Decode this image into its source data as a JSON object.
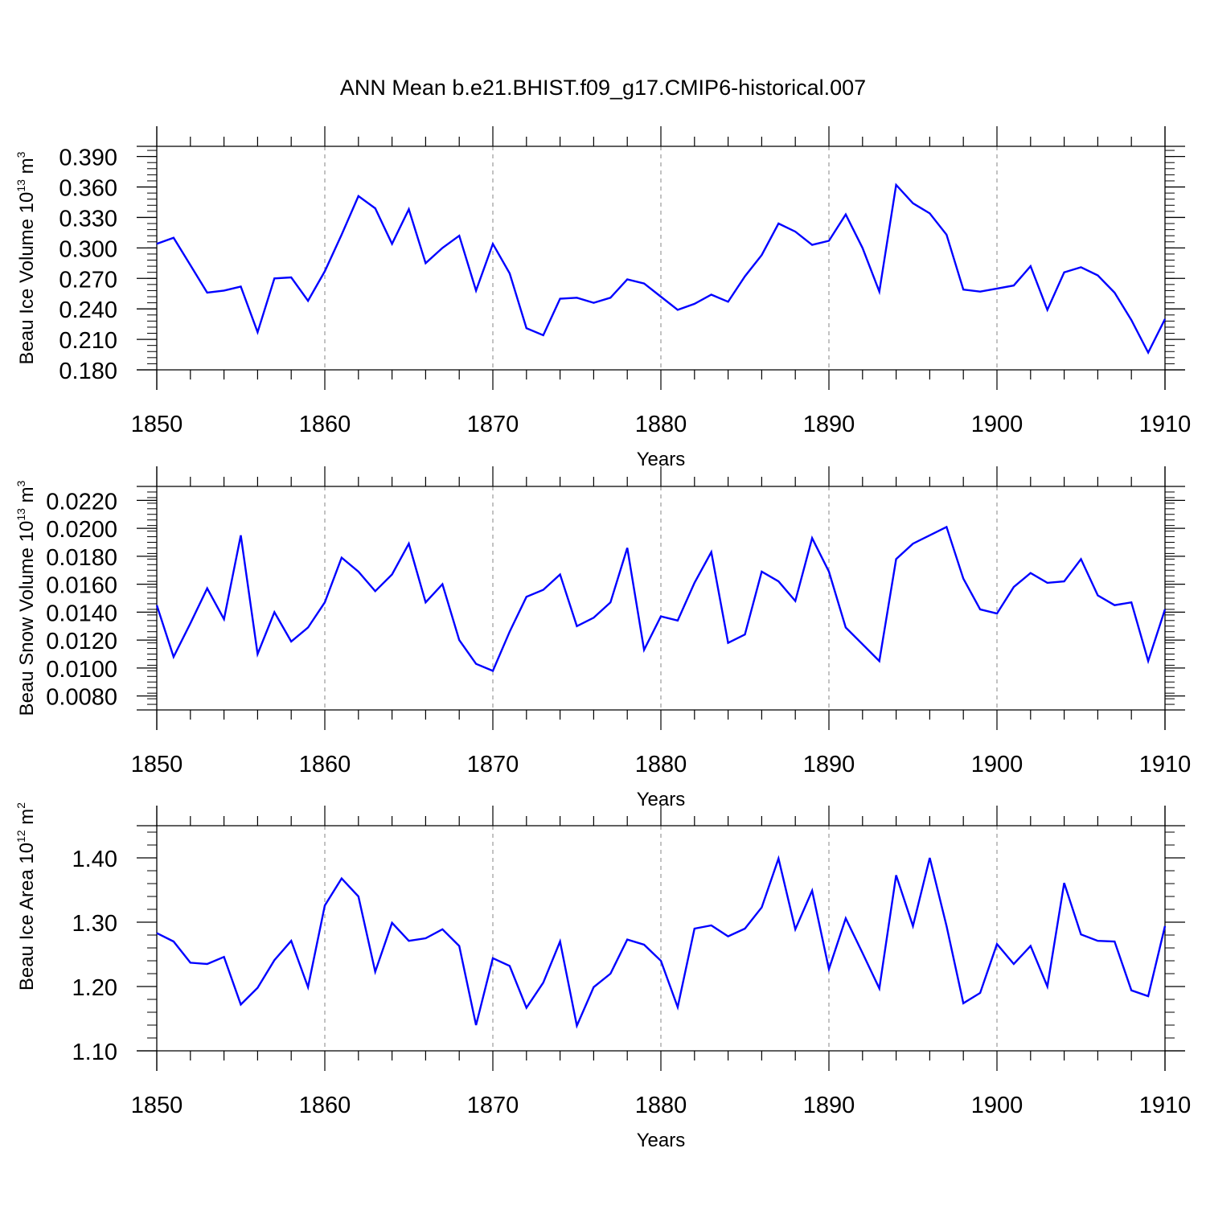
{
  "title": "ANN Mean b.e21.BHIST.f09_g17.CMIP6-historical.007",
  "colors": {
    "series": "#0000ff",
    "axis": "#000000",
    "grid": "#9a9a9a",
    "background": "#ffffff"
  },
  "chart_data": [
    {
      "type": "line",
      "title": "ANN Mean b.e21.BHIST.f09_g17.CMIP6-historical.007",
      "xlabel": "Years",
      "ylabel": {
        "text": "Beau Ice Volume 10",
        "superscript": "13",
        "unit": " m",
        "unit_superscript": "3"
      },
      "xlim": [
        1850,
        1910
      ],
      "ylim": [
        0.18,
        0.4
      ],
      "xticks": [
        1850,
        1860,
        1870,
        1880,
        1890,
        1900,
        1910
      ],
      "yticks": [
        "0.180",
        "0.210",
        "0.240",
        "0.270",
        "0.300",
        "0.330",
        "0.360",
        "0.390"
      ],
      "ytick_values": [
        0.18,
        0.21,
        0.24,
        0.27,
        0.3,
        0.33,
        0.36,
        0.39
      ],
      "grid_x": "dashed vertical at decades",
      "series": [
        {
          "name": "Beau Ice Volume",
          "x": [
            1850,
            1851,
            1852,
            1853,
            1854,
            1855,
            1856,
            1857,
            1858,
            1859,
            1860,
            1861,
            1862,
            1863,
            1864,
            1865,
            1866,
            1867,
            1868,
            1869,
            1870,
            1871,
            1872,
            1873,
            1874,
            1875,
            1876,
            1877,
            1878,
            1879,
            1880,
            1881,
            1882,
            1883,
            1884,
            1885,
            1886,
            1887,
            1888,
            1889,
            1890,
            1891,
            1892,
            1893,
            1894,
            1895,
            1896,
            1897,
            1898,
            1899,
            1900,
            1901,
            1902,
            1903,
            1904,
            1905,
            1906,
            1907,
            1908,
            1909,
            1910
          ],
          "values": [
            0.304,
            0.31,
            0.283,
            0.256,
            0.258,
            0.262,
            0.217,
            0.27,
            0.271,
            0.248,
            0.277,
            0.313,
            0.351,
            0.339,
            0.304,
            0.338,
            0.285,
            0.3,
            0.312,
            0.258,
            0.304,
            0.275,
            0.221,
            0.214,
            0.25,
            0.251,
            0.246,
            0.251,
            0.269,
            0.265,
            0.252,
            0.239,
            0.245,
            0.254,
            0.247,
            0.272,
            0.293,
            0.324,
            0.316,
            0.303,
            0.307,
            0.333,
            0.3,
            0.257,
            0.362,
            0.344,
            0.334,
            0.313,
            0.259,
            0.257,
            0.26,
            0.263,
            0.282,
            0.239,
            0.276,
            0.281,
            0.273,
            0.256,
            0.229,
            0.197,
            0.23
          ]
        }
      ]
    },
    {
      "type": "line",
      "title": "",
      "xlabel": "Years",
      "ylabel": {
        "text": "Beau Snow Volume 10",
        "superscript": "13",
        "unit": " m",
        "unit_superscript": "3"
      },
      "xlim": [
        1850,
        1910
      ],
      "ylim": [
        0.007,
        0.023
      ],
      "xticks": [
        1850,
        1860,
        1870,
        1880,
        1890,
        1900,
        1910
      ],
      "yticks": [
        "0.0080",
        "0.0100",
        "0.0120",
        "0.0140",
        "0.0160",
        "0.0180",
        "0.0200",
        "0.0220"
      ],
      "ytick_values": [
        0.008,
        0.01,
        0.012,
        0.014,
        0.016,
        0.018,
        0.02,
        0.022
      ],
      "grid_x": "dashed vertical at decades",
      "series": [
        {
          "name": "Beau Snow Volume",
          "x": [
            1850,
            1851,
            1852,
            1853,
            1854,
            1855,
            1856,
            1857,
            1858,
            1859,
            1860,
            1861,
            1862,
            1863,
            1864,
            1865,
            1866,
            1867,
            1868,
            1869,
            1870,
            1871,
            1872,
            1873,
            1874,
            1875,
            1876,
            1877,
            1878,
            1879,
            1880,
            1881,
            1882,
            1883,
            1884,
            1885,
            1886,
            1887,
            1888,
            1889,
            1890,
            1891,
            1892,
            1893,
            1894,
            1895,
            1896,
            1897,
            1898,
            1899,
            1900,
            1901,
            1902,
            1903,
            1904,
            1905,
            1906,
            1907,
            1908,
            1909,
            1910
          ],
          "values": [
            0.0145,
            0.0108,
            0.0132,
            0.0157,
            0.0135,
            0.0195,
            0.011,
            0.014,
            0.0119,
            0.0129,
            0.0147,
            0.0179,
            0.0169,
            0.0155,
            0.0167,
            0.0189,
            0.0147,
            0.016,
            0.012,
            0.0103,
            0.0098,
            0.0126,
            0.0151,
            0.0156,
            0.0167,
            0.013,
            0.0136,
            0.0147,
            0.0186,
            0.0113,
            0.0137,
            0.0134,
            0.0161,
            0.0183,
            0.0118,
            0.0124,
            0.0169,
            0.0162,
            0.0148,
            0.0193,
            0.0169,
            0.0129,
            0.0117,
            0.0105,
            0.0178,
            0.0189,
            0.0195,
            0.0201,
            0.0164,
            0.0142,
            0.0139,
            0.0158,
            0.0168,
            0.0161,
            0.0162,
            0.0178,
            0.0152,
            0.0145,
            0.0147,
            0.0105,
            0.0142
          ]
        }
      ]
    },
    {
      "type": "line",
      "title": "",
      "xlabel": "Years",
      "ylabel": {
        "text": "Beau Ice Area 10",
        "superscript": "12",
        "unit": " m",
        "unit_superscript": "2"
      },
      "xlim": [
        1850,
        1910
      ],
      "ylim": [
        1.1,
        1.45
      ],
      "xticks": [
        1850,
        1860,
        1870,
        1880,
        1890,
        1900,
        1910
      ],
      "yticks": [
        "1.10",
        "1.20",
        "1.30",
        "1.40"
      ],
      "ytick_values": [
        1.1,
        1.2,
        1.3,
        1.4
      ],
      "grid_x": "dashed vertical at decades",
      "series": [
        {
          "name": "Beau Ice Area",
          "x": [
            1850,
            1851,
            1852,
            1853,
            1854,
            1855,
            1856,
            1857,
            1858,
            1859,
            1860,
            1861,
            1862,
            1863,
            1864,
            1865,
            1866,
            1867,
            1868,
            1869,
            1870,
            1871,
            1872,
            1873,
            1874,
            1875,
            1876,
            1877,
            1878,
            1879,
            1880,
            1881,
            1882,
            1883,
            1884,
            1885,
            1886,
            1887,
            1888,
            1889,
            1890,
            1891,
            1892,
            1893,
            1894,
            1895,
            1896,
            1897,
            1898,
            1899,
            1900,
            1901,
            1902,
            1903,
            1904,
            1905,
            1906,
            1907,
            1908,
            1909,
            1910
          ],
          "values": [
            1.283,
            1.27,
            1.237,
            1.235,
            1.246,
            1.172,
            1.198,
            1.241,
            1.271,
            1.199,
            1.326,
            1.368,
            1.34,
            1.223,
            1.299,
            1.271,
            1.275,
            1.289,
            1.263,
            1.14,
            1.244,
            1.232,
            1.167,
            1.206,
            1.27,
            1.139,
            1.199,
            1.22,
            1.273,
            1.265,
            1.24,
            1.168,
            1.29,
            1.295,
            1.278,
            1.29,
            1.323,
            1.399,
            1.289,
            1.349,
            1.227,
            1.306,
            1.252,
            1.197,
            1.373,
            1.294,
            1.4,
            1.294,
            1.174,
            1.19,
            1.266,
            1.235,
            1.263,
            1.2,
            1.361,
            1.281,
            1.271,
            1.27,
            1.194,
            1.185,
            1.294
          ]
        }
      ]
    }
  ]
}
